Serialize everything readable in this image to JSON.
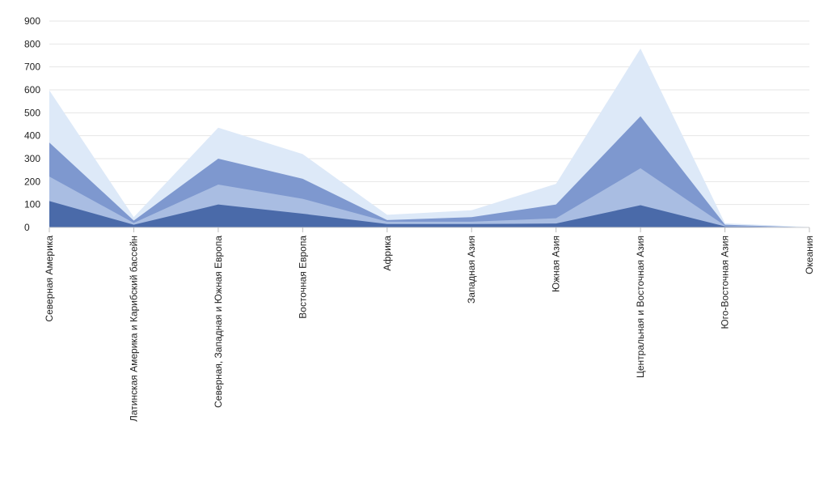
{
  "chart_data": {
    "type": "area",
    "stacked": false,
    "categories": [
      "Северная Америка",
      "Латинская Америка и Карибский бассейн",
      "Северная, Западная и Южная Европа",
      "Восточная Европа",
      "Африка",
      "Западная Азия",
      "Южная Азия",
      "Центральная и Восточная Азия",
      "Юго-Восточная Азия",
      "Океания"
    ],
    "series": [
      {
        "color": "#dde9f8",
        "values": [
          598,
          45,
          435,
          320,
          55,
          75,
          190,
          780,
          18,
          2
        ]
      },
      {
        "color": "#7e98cf",
        "values": [
          370,
          30,
          300,
          212,
          32,
          45,
          100,
          485,
          12,
          0
        ]
      },
      {
        "color": "#a9bde2",
        "values": [
          222,
          20,
          187,
          125,
          25,
          25,
          40,
          258,
          8,
          0
        ]
      },
      {
        "color": "#4a6aa9",
        "values": [
          115,
          12,
          100,
          60,
          15,
          15,
          17,
          97,
          5,
          0
        ]
      }
    ],
    "y_ticks": [
      "0",
      "100",
      "200",
      "300",
      "400",
      "500",
      "600",
      "700",
      "800",
      "900"
    ],
    "ylim": [
      0,
      900
    ],
    "grid": true,
    "legend": "none"
  }
}
